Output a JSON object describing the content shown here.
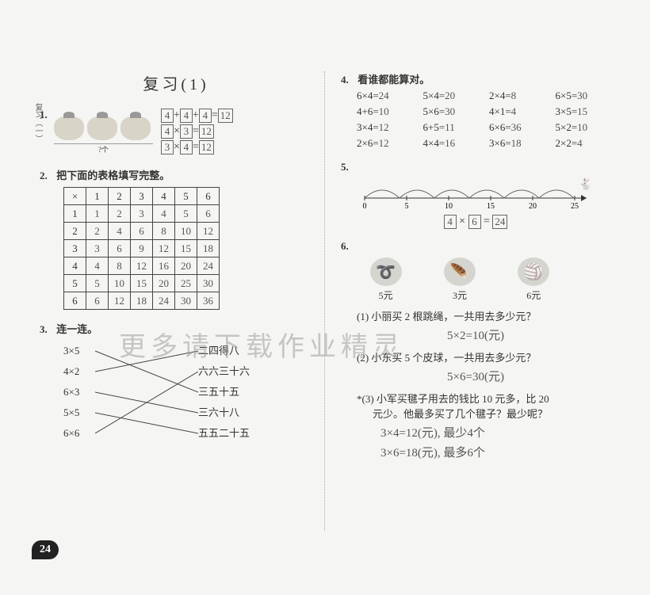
{
  "sideLabel": "复习（一）",
  "title": "复习(1)",
  "pageNumber": "24",
  "watermark": "更多请下载作业精灵",
  "p1": {
    "num": "1.",
    "bracketLabel": "?个",
    "eq1_parts": [
      "4",
      "+",
      "4",
      "+",
      "4",
      "=",
      "12"
    ],
    "eq2_parts": [
      "4",
      "×",
      "3",
      "=",
      "12"
    ],
    "eq3_parts": [
      "3",
      "×",
      "4",
      "=",
      "12"
    ]
  },
  "p2": {
    "num": "2.",
    "text": "把下面的表格填写完整。",
    "header": [
      "×",
      "1",
      "2",
      "3",
      "4",
      "5",
      "6"
    ],
    "rows": [
      [
        "1",
        "1",
        "2",
        "3",
        "4",
        "5",
        "6"
      ],
      [
        "2",
        "2",
        "4",
        "6",
        "8",
        "10",
        "12"
      ],
      [
        "3",
        "3",
        "6",
        "9",
        "12",
        "15",
        "18"
      ],
      [
        "4",
        "4",
        "8",
        "12",
        "16",
        "20",
        "24"
      ],
      [
        "5",
        "5",
        "10",
        "15",
        "20",
        "25",
        "30"
      ],
      [
        "6",
        "6",
        "12",
        "18",
        "24",
        "30",
        "36"
      ]
    ]
  },
  "p3": {
    "num": "3.",
    "text": "连一连。",
    "left": [
      "3×5",
      "4×2",
      "6×3",
      "5×5",
      "6×6"
    ],
    "right": [
      "二四得八",
      "六六三十六",
      "三五十五",
      "三六十八",
      "五五二十五"
    ]
  },
  "p4": {
    "num": "4.",
    "text": "看谁都能算对。",
    "items": [
      {
        "q": "6×4=",
        "a": "24"
      },
      {
        "q": "5×4=",
        "a": "20"
      },
      {
        "q": "2×4=",
        "a": "8"
      },
      {
        "q": "6×5=",
        "a": "30"
      },
      {
        "q": "4+6=",
        "a": "10"
      },
      {
        "q": "5×6=",
        "a": "30"
      },
      {
        "q": "4×1=",
        "a": "4"
      },
      {
        "q": "3×5=",
        "a": "15"
      },
      {
        "q": "3×4=",
        "a": "12"
      },
      {
        "q": "6+5=",
        "a": "11"
      },
      {
        "q": "6×6=",
        "a": "36"
      },
      {
        "q": "5×2=",
        "a": "10"
      },
      {
        "q": "2×6=",
        "a": "12"
      },
      {
        "q": "4×4=",
        "a": "16"
      },
      {
        "q": "3×6=",
        "a": "18"
      },
      {
        "q": "2×2=",
        "a": "4"
      }
    ]
  },
  "p5": {
    "num": "5.",
    "ticks": [
      "0",
      "5",
      "10",
      "15",
      "20",
      "25"
    ],
    "eq_parts": [
      "4",
      "×",
      "6",
      "=",
      "24"
    ]
  },
  "p6": {
    "num": "6.",
    "items": [
      {
        "label": "5元"
      },
      {
        "label": "3元"
      },
      {
        "label": "6元"
      }
    ],
    "q1": "(1) 小丽买 2 根跳绳，一共用去多少元？",
    "a1": "5×2=10(元)",
    "q2": "(2) 小东买 5 个皮球，一共用去多少元？",
    "a2": "5×6=30(元)",
    "q3_line1": "*(3) 小军买毽子用去的钱比 10 元多，比 20",
    "q3_line2": "元少。他最多买了几个毽子？最少呢？",
    "a3_line1": "3×4=12(元), 最少4个",
    "a3_line2": "3×6=18(元), 最多6个"
  }
}
